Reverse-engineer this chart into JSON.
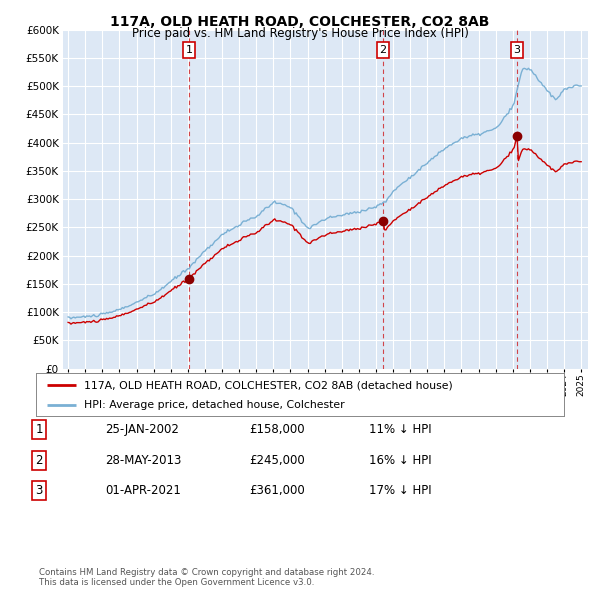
{
  "title": "117A, OLD HEATH ROAD, COLCHESTER, CO2 8AB",
  "subtitle": "Price paid vs. HM Land Registry's House Price Index (HPI)",
  "ylim": [
    0,
    600000
  ],
  "yticks": [
    0,
    50000,
    100000,
    150000,
    200000,
    250000,
    300000,
    350000,
    400000,
    450000,
    500000,
    550000,
    600000
  ],
  "legend_line1": "117A, OLD HEATH ROAD, COLCHESTER, CO2 8AB (detached house)",
  "legend_line2": "HPI: Average price, detached house, Colchester",
  "sale_color": "#cc0000",
  "hpi_color": "#7ab0d4",
  "transaction1": {
    "label": "1",
    "date": "25-JAN-2002",
    "price": "£158,000",
    "pct": "11% ↓ HPI"
  },
  "transaction2": {
    "label": "2",
    "date": "28-MAY-2013",
    "price": "£245,000",
    "pct": "16% ↓ HPI"
  },
  "transaction3": {
    "label": "3",
    "date": "01-APR-2021",
    "price": "£361,000",
    "pct": "17% ↓ HPI"
  },
  "footer": "Contains HM Land Registry data © Crown copyright and database right 2024.\nThis data is licensed under the Open Government Licence v3.0.",
  "bg_color": "#dde8f5",
  "grid_color": "#ffffff",
  "sale_dates": [
    2002.06,
    2013.42,
    2021.25
  ],
  "sale_prices": [
    158000,
    245000,
    361000
  ]
}
